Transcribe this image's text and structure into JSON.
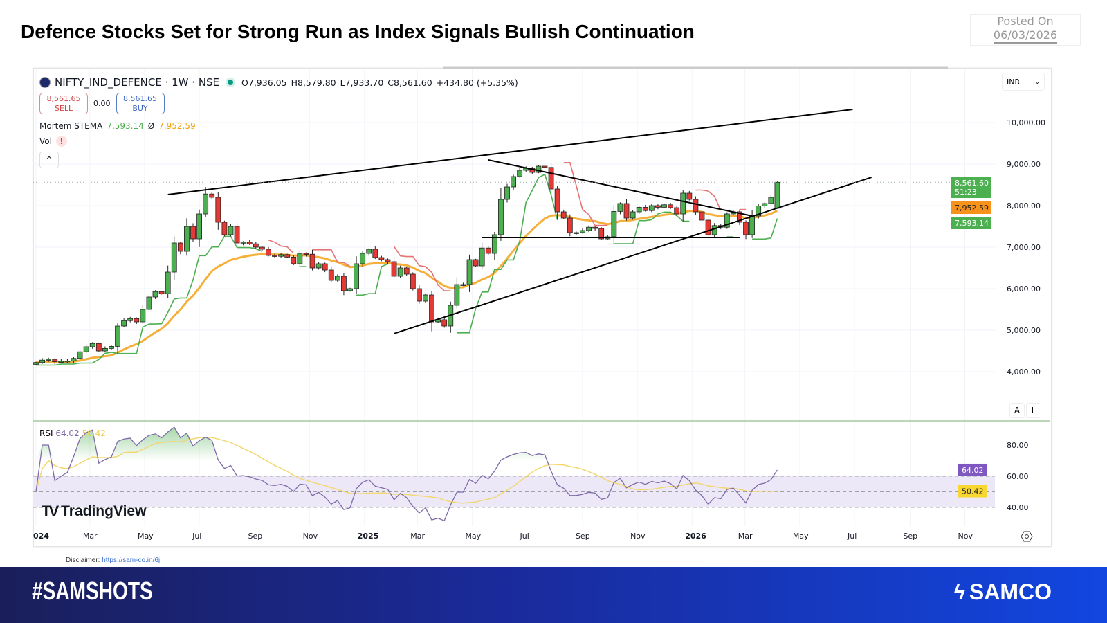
{
  "page": {
    "title": "Defence Stocks Set for Strong Run as Index Signals Bullish Continuation",
    "posted_label": "Posted On",
    "posted_date": "06/03/2026",
    "disclaimer_label": "Disclaimer:",
    "disclaimer_link": "https://sam-co.in/6j",
    "hashtag": "#SAMSHOTS",
    "brand": "SAMCO"
  },
  "header": {
    "symbol": "NIFTY_IND_DEFENCE · 1W · NSE",
    "open": "O7,936.05",
    "high": "H8,579.80",
    "low": "L7,933.70",
    "close": "C8,561.60",
    "change": "+434.80 (+5.35%)",
    "sell_price": "8,561.65",
    "sell_label": "SELL",
    "spread": "0.00",
    "buy_price": "8,561.65",
    "buy_label": "BUY",
    "indicator_name": "Mortem STEMA",
    "indicator_fast": "7,593.14",
    "indicator_sep": "Ø",
    "indicator_slow": "7,952.59",
    "vol_label": "Vol",
    "vol_warning": "!",
    "collapse": "^",
    "currency": "INR",
    "auto_btn": "A",
    "log_btn": "L",
    "tv_brand": "TradingView",
    "rsi_label": "RSI",
    "rsi_value": "64.02",
    "rsi_ma_value": "50.42"
  },
  "colors": {
    "up": "#4caf50",
    "down": "#e53935",
    "stema_fast": "#4caf50",
    "stema_slow": "#f5a623",
    "trail_down": "#e57373",
    "rsi": "#7e6aa6",
    "rsi_ma": "#f3d770",
    "rsi_band": "#ece8f8",
    "trendline": "#000000"
  },
  "chart_data": [
    {
      "type": "candlestick",
      "interval": "1W",
      "start_week": "2024-01-01",
      "closes": [
        4220,
        4280,
        4300,
        4240,
        4250,
        4260,
        4320,
        4480,
        4600,
        4680,
        4500,
        4560,
        4610,
        5100,
        5230,
        5280,
        5200,
        5500,
        5800,
        5930,
        5880,
        6400,
        7100,
        6900,
        7500,
        7200,
        7800,
        8280,
        8200,
        7600,
        7300,
        7500,
        7100,
        7120,
        7080,
        7000,
        6950,
        6800,
        6780,
        6820,
        6760,
        6600,
        6850,
        6830,
        6500,
        6600,
        6450,
        6200,
        6300,
        5950,
        6000,
        6600,
        6850,
        6950,
        6750,
        6700,
        6650,
        6300,
        6500,
        6350,
        6000,
        5700,
        5850,
        5200,
        5250,
        5100,
        5600,
        6100,
        6100,
        6700,
        6550,
        6980,
        6850,
        7300,
        8150,
        8450,
        8700,
        8850,
        8900,
        8800,
        8950,
        8920,
        8400,
        7850,
        7700,
        7350,
        7350,
        7400,
        7480,
        7450,
        7200,
        7250,
        7860,
        8050,
        7700,
        7850,
        7960,
        7880,
        8000,
        7960,
        8020,
        7950,
        7800,
        8300,
        8150,
        7850,
        7650,
        7300,
        7520,
        7480,
        7800,
        7850,
        7600,
        7300,
        7750,
        7990,
        8050,
        8200,
        7936.05
      ],
      "last_bar": {
        "date": "2026-03-02",
        "open": 7936.05,
        "high": 8579.8,
        "low": 7933.7,
        "close": 8561.6
      },
      "price_axis_ticks": [
        "10,000.00",
        "9,000.00",
        "8,000.00",
        "7,000.00",
        "6,000.00",
        "5,000.00",
        "4,000.00"
      ],
      "price_axis_values": [
        10000,
        9000,
        8000,
        7000,
        6000,
        5000,
        4000
      ],
      "ylim": [
        3000,
        10700
      ],
      "price_labels": [
        {
          "value": 8561.6,
          "text": "8,561.60",
          "sub": "51:23",
          "color": "#4caf50"
        },
        {
          "value": 7952.59,
          "text": "7,952.59",
          "color": "#f7931a"
        },
        {
          "value": 7593.14,
          "text": "7,593.14",
          "color": "#4caf50"
        }
      ],
      "trendlines": [
        {
          "name": "upper-channel",
          "from": [
            "2024-05-27",
            8267
          ],
          "to": [
            "2026-06-29",
            10317
          ]
        },
        {
          "name": "lower-channel",
          "from": [
            "2025-02-03",
            4917
          ],
          "to": [
            "2026-07-20",
            8683
          ]
        },
        {
          "name": "descending-resistance",
          "from": [
            "2025-05-19",
            9100
          ],
          "to": [
            "2026-03-09",
            7750
          ]
        },
        {
          "name": "horizontal-support",
          "from": [
            "2025-05-12",
            7233
          ],
          "to": [
            "2026-02-23",
            7233
          ]
        }
      ],
      "time_axis": [
        {
          "label": "024",
          "date": "2024-01-01",
          "bold": true
        },
        {
          "label": "Mar",
          "date": "2024-03-01"
        },
        {
          "label": "May",
          "date": "2024-05-01"
        },
        {
          "label": "Jul",
          "date": "2024-07-01"
        },
        {
          "label": "Sep",
          "date": "2024-09-01"
        },
        {
          "label": "Nov",
          "date": "2024-11-01"
        },
        {
          "label": "2025",
          "date": "2025-01-01",
          "bold": true
        },
        {
          "label": "Mar",
          "date": "2025-03-01"
        },
        {
          "label": "May",
          "date": "2025-05-01"
        },
        {
          "label": "Jul",
          "date": "2025-07-01"
        },
        {
          "label": "Sep",
          "date": "2025-09-01"
        },
        {
          "label": "Nov",
          "date": "2025-11-01"
        },
        {
          "label": "2026",
          "date": "2026-01-01",
          "bold": true
        },
        {
          "label": "Mar",
          "date": "2026-03-01"
        },
        {
          "label": "May",
          "date": "2026-05-01"
        },
        {
          "label": "Jul",
          "date": "2026-07-01"
        },
        {
          "label": "Sep",
          "date": "2026-09-01"
        },
        {
          "label": "Nov",
          "date": "2026-11-01"
        }
      ]
    },
    {
      "type": "line",
      "name": "RSI",
      "ylim": [
        20,
        100
      ],
      "levels": [
        80,
        60,
        50,
        40
      ],
      "axis_ticks": [
        "80.00",
        "60.00",
        "40.00"
      ],
      "axis_values": [
        80,
        60,
        40
      ],
      "current": 64.02,
      "ma_current": 50.42
    }
  ]
}
